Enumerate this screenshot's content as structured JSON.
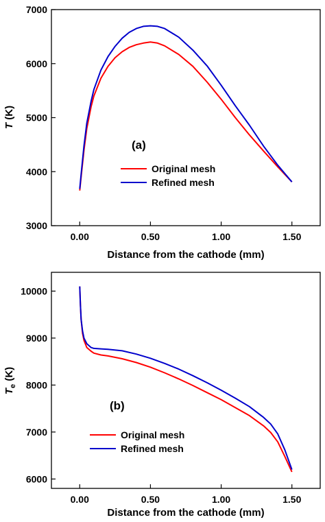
{
  "chart_data": [
    {
      "type": "line",
      "panel_label": "(a)",
      "xlabel": "Distance from the cathode (mm)",
      "ylabel_main": "T",
      "ylabel_sub": "",
      "ylabel_unit": " (K)",
      "xlim": [
        -0.2,
        1.7
      ],
      "ylim": [
        3000,
        7000
      ],
      "xticks": [
        0.0,
        0.5,
        1.0,
        1.5
      ],
      "xtick_labels": [
        "0.00",
        "0.50",
        "1.00",
        "1.50"
      ],
      "yticks": [
        3000,
        4000,
        5000,
        6000,
        7000
      ],
      "ytick_labels": [
        "3000",
        "4000",
        "5000",
        "6000",
        "7000"
      ],
      "grid": false,
      "legend_position": "center",
      "series": [
        {
          "name": "Original mesh",
          "color": "#ff0000",
          "x": [
            0.0,
            0.01,
            0.03,
            0.05,
            0.08,
            0.1,
            0.15,
            0.2,
            0.25,
            0.3,
            0.35,
            0.4,
            0.45,
            0.5,
            0.55,
            0.6,
            0.7,
            0.8,
            0.9,
            1.0,
            1.1,
            1.2,
            1.3,
            1.4,
            1.5
          ],
          "y": [
            3650,
            3900,
            4400,
            4800,
            5200,
            5400,
            5730,
            5950,
            6110,
            6220,
            6300,
            6350,
            6380,
            6400,
            6380,
            6330,
            6170,
            5950,
            5660,
            5340,
            5000,
            4680,
            4380,
            4090,
            3810
          ]
        },
        {
          "name": "Refined mesh",
          "color": "#0000cc",
          "x": [
            0.0,
            0.01,
            0.03,
            0.05,
            0.08,
            0.1,
            0.15,
            0.2,
            0.25,
            0.3,
            0.35,
            0.4,
            0.45,
            0.5,
            0.55,
            0.6,
            0.7,
            0.8,
            0.9,
            1.0,
            1.1,
            1.2,
            1.3,
            1.4,
            1.5
          ],
          "y": [
            3680,
            3950,
            4480,
            4900,
            5300,
            5520,
            5880,
            6130,
            6320,
            6470,
            6580,
            6650,
            6690,
            6700,
            6690,
            6650,
            6490,
            6250,
            5960,
            5600,
            5220,
            4860,
            4470,
            4120,
            3810
          ]
        }
      ]
    },
    {
      "type": "line",
      "panel_label": "(b)",
      "xlabel": "Distance from the cathode (mm)",
      "ylabel_main": "T",
      "ylabel_sub": "e",
      "ylabel_unit": " (K)",
      "xlim": [
        -0.2,
        1.7
      ],
      "ylim": [
        5800,
        10400
      ],
      "xticks": [
        0.0,
        0.5,
        1.0,
        1.5
      ],
      "xtick_labels": [
        "0.00",
        "0.50",
        "1.00",
        "1.50"
      ],
      "yticks": [
        6000,
        7000,
        8000,
        9000,
        10000
      ],
      "ytick_labels": [
        "6000",
        "7000",
        "8000",
        "9000",
        "10000"
      ],
      "grid": false,
      "legend_position": "lower-center",
      "series": [
        {
          "name": "Original mesh",
          "color": "#ff0000",
          "x": [
            0.0,
            0.005,
            0.01,
            0.02,
            0.03,
            0.05,
            0.08,
            0.1,
            0.15,
            0.2,
            0.3,
            0.4,
            0.5,
            0.6,
            0.7,
            0.8,
            0.9,
            1.0,
            1.1,
            1.2,
            1.3,
            1.35,
            1.4,
            1.45,
            1.5
          ],
          "y": [
            10100,
            9700,
            9400,
            9100,
            8950,
            8800,
            8720,
            8680,
            8640,
            8620,
            8560,
            8480,
            8380,
            8260,
            8130,
            7990,
            7840,
            7690,
            7520,
            7350,
            7130,
            6990,
            6790,
            6480,
            6150
          ]
        },
        {
          "name": "Refined mesh",
          "color": "#0000cc",
          "x": [
            0.0,
            0.005,
            0.01,
            0.02,
            0.03,
            0.05,
            0.08,
            0.1,
            0.15,
            0.2,
            0.3,
            0.4,
            0.5,
            0.6,
            0.7,
            0.8,
            0.9,
            1.0,
            1.1,
            1.2,
            1.3,
            1.35,
            1.4,
            1.45,
            1.5
          ],
          "y": [
            10100,
            9700,
            9400,
            9150,
            9000,
            8880,
            8800,
            8780,
            8770,
            8760,
            8730,
            8660,
            8570,
            8460,
            8340,
            8200,
            8050,
            7890,
            7720,
            7540,
            7310,
            7170,
            6960,
            6620,
            6200
          ]
        }
      ]
    }
  ]
}
